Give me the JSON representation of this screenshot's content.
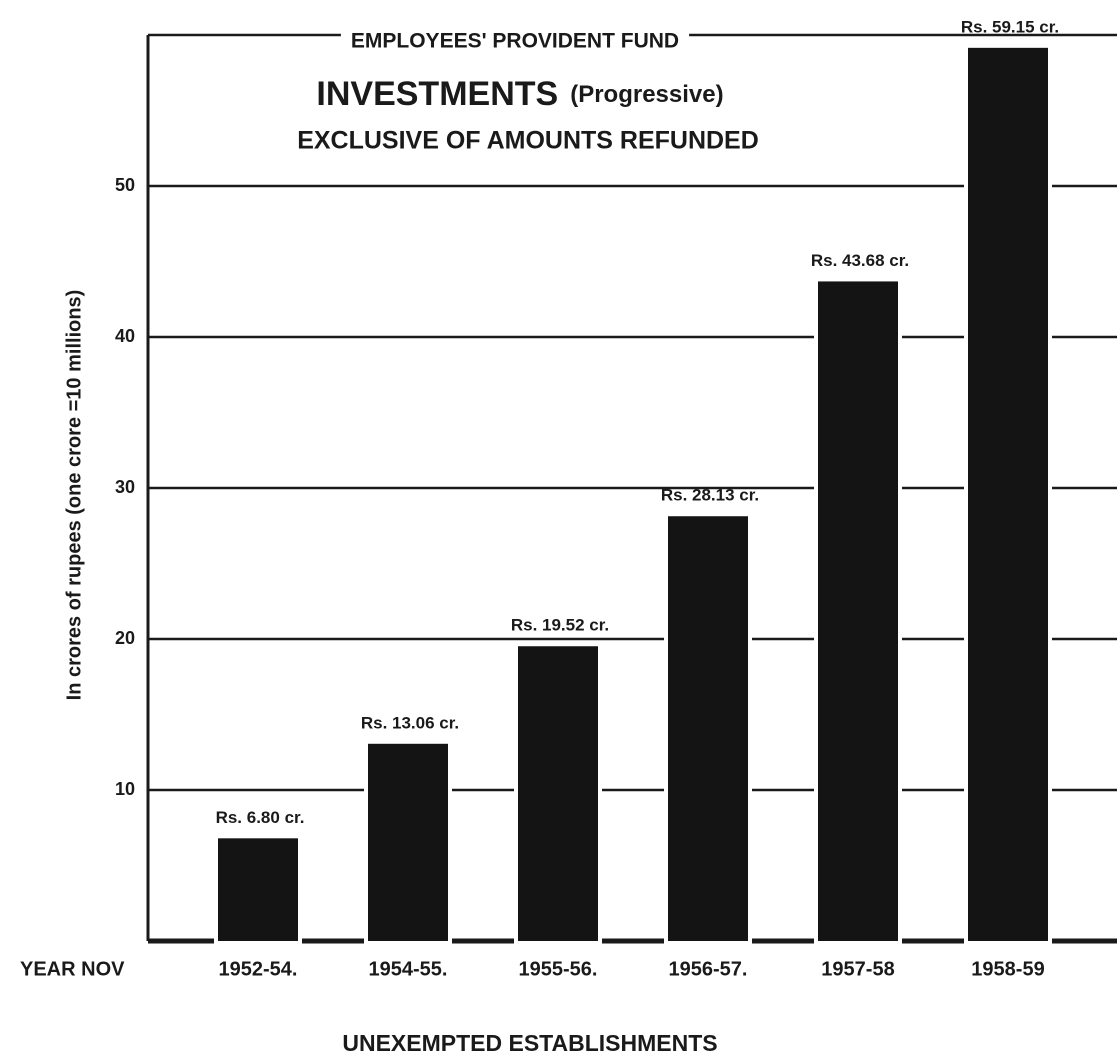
{
  "chart_data": {
    "type": "bar",
    "header": "EMPLOYEES' PROVIDENT FUND",
    "title": "INVESTMENTS",
    "subtitle": "(Progressive)",
    "note": "EXCLUSIVE OF AMOUNTS REFUNDED",
    "ylabel": "In crores of rupees  (one crore =10 millions)",
    "x_axis_prefix": "YEAR  NOV",
    "xlabel": "UNEXEMPTED  ESTABLISHMENTS",
    "categories": [
      "1952-54.",
      "1954-55.",
      "1955-56.",
      "1956-57.",
      "1957-58",
      "1958-59"
    ],
    "values": [
      6.8,
      13.06,
      19.52,
      28.13,
      43.68,
      59.15
    ],
    "value_labels": [
      "Rs. 6.80 cr.",
      "Rs. 13.06 cr.",
      "Rs. 19.52 cr.",
      "Rs. 28.13 cr.",
      "Rs. 43.68 cr.",
      "Rs. 59.15 cr."
    ],
    "color": "#141414",
    "ylim": [
      0,
      60
    ],
    "yticks": [
      10,
      20,
      30,
      40,
      50
    ],
    "grid": true
  }
}
